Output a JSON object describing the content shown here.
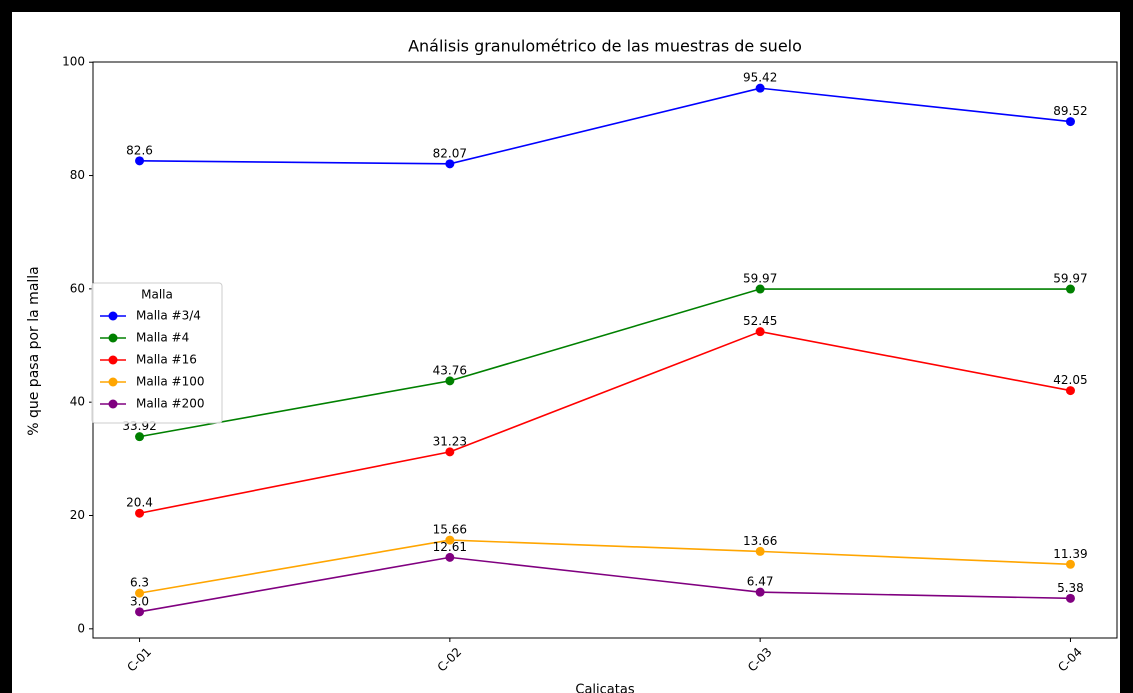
{
  "chart_data": {
    "type": "line",
    "title": "Análisis granulométrico de las muestras de suelo",
    "xlabel": "Calicatas",
    "ylabel": "% que pasa por la malla",
    "categories": [
      "C-01",
      "C-02",
      "C-03",
      "C-04"
    ],
    "series": [
      {
        "name": "Malla #3/4",
        "color": "#0000ff",
        "values": [
          82.6,
          82.07,
          95.42,
          89.52
        ],
        "value_labels": [
          "82.6",
          "82.07",
          "95.42",
          "89.52"
        ]
      },
      {
        "name": "Malla #4",
        "color": "#008000",
        "values": [
          33.92,
          43.76,
          59.97,
          59.97
        ],
        "value_labels": [
          "33.92",
          "43.76",
          "59.97",
          "59.97"
        ]
      },
      {
        "name": "Malla #16",
        "color": "#ff0000",
        "values": [
          20.4,
          31.23,
          52.45,
          42.05
        ],
        "value_labels": [
          "20.4",
          "31.23",
          "52.45",
          "42.05"
        ]
      },
      {
        "name": "Malla #100",
        "color": "#ffa500",
        "values": [
          6.3,
          15.66,
          13.66,
          11.39
        ],
        "value_labels": [
          "6.3",
          "15.66",
          "13.66",
          "11.39"
        ]
      },
      {
        "name": "Malla #200",
        "color": "#800080",
        "values": [
          3,
          12.61,
          6.47,
          5.38
        ],
        "value_labels": [
          "3.0",
          "12.61",
          "6.47",
          "5.38"
        ]
      }
    ],
    "ylim": [
      -1.62,
      100.04
    ],
    "yticks": [
      0,
      20,
      40,
      60,
      80,
      100
    ],
    "legend": {
      "title": "Malla",
      "position": "center left"
    },
    "grid": false
  }
}
